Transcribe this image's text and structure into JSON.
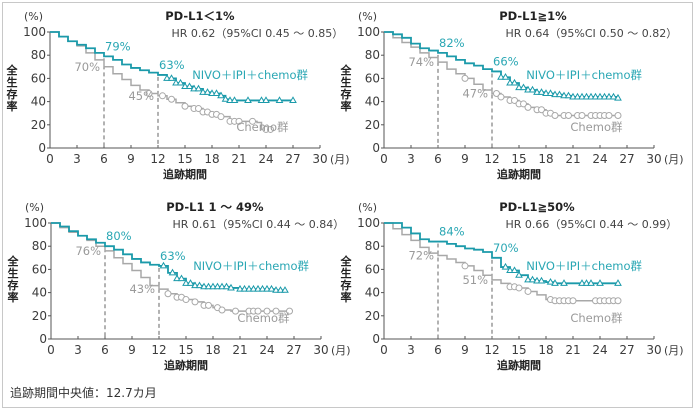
{
  "footnote": "追跡期間中央値：12.7カ月",
  "colors": {
    "nivo": "#1b9aaa",
    "nivo_label": "#2aa7b4",
    "chemo": "#a8a8a8",
    "chemo_label": "#9a9a9a",
    "axis": "#555555"
  },
  "chart_data": [
    {
      "type": "line",
      "title": "PD-L1＜1%",
      "hr_text": "HR 0.62（95%CI 0.45 ～ 0.85）",
      "xlabel": "追跡期間",
      "ylabel": "全生存率",
      "y_unit": "(%)",
      "x_unit": "(月)",
      "xlim": [
        0,
        30
      ],
      "ylim": [
        0,
        100
      ],
      "xticks": [
        0,
        3,
        6,
        9,
        12,
        15,
        18,
        21,
        24,
        27,
        30
      ],
      "yticks": [
        0,
        20,
        40,
        60,
        80,
        100
      ],
      "reference_lines_x": [
        6,
        12
      ],
      "series": [
        {
          "name": "NIVO＋IPI＋chemo群",
          "marker": "triangle",
          "x": [
            0,
            1,
            2,
            3,
            4,
            5,
            6,
            7,
            8,
            9,
            10,
            11,
            12,
            13,
            14,
            15,
            16,
            17,
            18,
            19,
            19.5,
            20,
            21,
            22,
            23,
            24,
            25,
            26,
            27
          ],
          "y": [
            100,
            96,
            92,
            89,
            86,
            82,
            79,
            76,
            72,
            69,
            67,
            65,
            63,
            60,
            56,
            53,
            51,
            48,
            47,
            45,
            42,
            41,
            41,
            41,
            41,
            41,
            41,
            41,
            41
          ],
          "annotations": [
            {
              "x": 6,
              "label": "79%"
            },
            {
              "x": 12,
              "label": "63%"
            }
          ],
          "censor_x": [
            13,
            13.5,
            14,
            14.5,
            15,
            15.5,
            16,
            16.5,
            17,
            17.5,
            18,
            18.5,
            19,
            19.5,
            20,
            20.5,
            22,
            23.5,
            24,
            25.5,
            27
          ]
        },
        {
          "name": "Chemo群",
          "marker": "circle",
          "x": [
            0,
            1,
            2,
            3,
            4,
            5,
            6,
            7,
            8,
            9,
            10,
            11,
            12,
            13,
            14,
            15,
            16,
            17,
            18,
            19,
            20,
            21,
            22,
            23,
            23.5,
            24,
            24.5
          ],
          "y": [
            100,
            96,
            92,
            88,
            82,
            76,
            70,
            64,
            59,
            54,
            50,
            47,
            45,
            42,
            39,
            36,
            34,
            31,
            29,
            27,
            23,
            23,
            23,
            22,
            16,
            16,
            16
          ],
          "annotations": [
            {
              "x": 6,
              "label": "70%"
            },
            {
              "x": 12,
              "label": "45%"
            }
          ],
          "censor_x": [
            11,
            12.5,
            13.5,
            15,
            16,
            16.5,
            17,
            17.5,
            18,
            18.5,
            19,
            20,
            20.5,
            21,
            22.5,
            24,
            24.5
          ]
        }
      ]
    },
    {
      "type": "line",
      "title": "PD-L1≧1%",
      "hr_text": "HR 0.64（95%CI 0.50 ～ 0.82）",
      "xlabel": "追跡期間",
      "ylabel": "全生存率",
      "y_unit": "(%)",
      "x_unit": "(月)",
      "xlim": [
        0,
        30
      ],
      "ylim": [
        0,
        100
      ],
      "xticks": [
        0,
        3,
        6,
        9,
        12,
        15,
        18,
        21,
        24,
        27,
        30
      ],
      "yticks": [
        0,
        20,
        40,
        60,
        80,
        100
      ],
      "reference_lines_x": [
        6,
        12
      ],
      "series": [
        {
          "name": "NIVO＋IPI＋chemo群",
          "marker": "triangle",
          "x": [
            0,
            1,
            2,
            3,
            4,
            5,
            6,
            7,
            8,
            9,
            10,
            11,
            12,
            13,
            14,
            15,
            16,
            17,
            18,
            19,
            20,
            21,
            22,
            23,
            24,
            25,
            26
          ],
          "y": [
            100,
            98,
            95,
            90,
            86,
            84,
            82,
            79,
            76,
            73,
            71,
            68,
            66,
            61,
            56,
            52,
            50,
            48,
            47,
            46,
            45,
            44,
            44,
            44,
            44,
            44,
            43
          ],
          "annotations": [
            {
              "x": 6,
              "label": "82%"
            },
            {
              "x": 12,
              "label": "66%"
            }
          ],
          "censor_x": [
            13,
            13.5,
            14,
            14.5,
            15,
            15.5,
            16,
            16.5,
            17,
            17.5,
            18,
            18.5,
            19,
            19.5,
            20,
            20.5,
            21,
            21.5,
            22,
            22.5,
            23,
            23.5,
            24,
            24.5,
            25,
            25.5,
            26
          ]
        },
        {
          "name": "Chemo群",
          "marker": "circle",
          "x": [
            0,
            1,
            2,
            3,
            4,
            5,
            6,
            7,
            8,
            9,
            10,
            11,
            12,
            13,
            14,
            15,
            16,
            17,
            18,
            19,
            20,
            21,
            22,
            23,
            24,
            25,
            26
          ],
          "y": [
            100,
            95,
            91,
            87,
            82,
            78,
            74,
            68,
            64,
            60,
            55,
            50,
            47,
            44,
            41,
            38,
            35,
            33,
            30,
            28,
            28,
            28,
            28,
            28,
            28,
            28,
            28
          ],
          "annotations": [
            {
              "x": 6,
              "label": "74%"
            },
            {
              "x": 12,
              "label": "47%"
            }
          ],
          "censor_x": [
            9,
            12.5,
            13,
            14,
            14.5,
            15,
            15.5,
            16,
            17,
            17.5,
            18,
            18.5,
            19,
            20,
            20.5,
            21.5,
            22,
            23,
            23.5,
            24,
            24.5,
            25,
            26
          ]
        }
      ]
    },
    {
      "type": "line",
      "title": "PD-L1 1 ～ 49%",
      "hr_text": "HR 0.61（95%CI 0.44 ～ 0.84）",
      "xlabel": "追跡期間",
      "ylabel": "全生存率",
      "y_unit": "(%)",
      "x_unit": "(月)",
      "xlim": [
        0,
        30
      ],
      "ylim": [
        0,
        100
      ],
      "xticks": [
        0,
        3,
        6,
        9,
        12,
        15,
        18,
        21,
        24,
        27,
        30
      ],
      "yticks": [
        0,
        20,
        40,
        60,
        80,
        100
      ],
      "reference_lines_x": [
        6,
        12
      ],
      "series": [
        {
          "name": "NIVO＋IPI＋chemo群",
          "marker": "triangle",
          "x": [
            0,
            1,
            2,
            3,
            4,
            5,
            6,
            7,
            8,
            9,
            10,
            11,
            12,
            13,
            14,
            15,
            16,
            17,
            18,
            19,
            20,
            21,
            22,
            23,
            24,
            25,
            26
          ],
          "y": [
            100,
            97,
            93,
            89,
            86,
            83,
            80,
            77,
            73,
            69,
            66,
            64,
            63,
            57,
            52,
            48,
            46,
            45,
            45,
            45,
            44,
            43,
            43,
            43,
            43,
            42,
            42
          ],
          "annotations": [
            {
              "x": 6,
              "label": "80%"
            },
            {
              "x": 12,
              "label": "63%"
            }
          ],
          "censor_x": [
            12.5,
            13.5,
            14,
            14.5,
            15,
            15.5,
            16,
            16.5,
            17,
            17.5,
            18,
            18.5,
            19,
            19.5,
            20,
            21,
            21.5,
            22,
            22.5,
            23,
            23.5,
            24,
            24.5,
            25,
            25.5,
            26
          ]
        },
        {
          "name": "Chemo群",
          "marker": "circle",
          "x": [
            0,
            1,
            2,
            3,
            4,
            5,
            6,
            7,
            8,
            9,
            10,
            11,
            12,
            13,
            14,
            15,
            16,
            17,
            18,
            19,
            20,
            21,
            22,
            23,
            24,
            25,
            26,
            26.5
          ],
          "y": [
            100,
            96,
            92,
            89,
            85,
            80,
            76,
            70,
            65,
            59,
            53,
            46,
            43,
            39,
            36,
            34,
            32,
            29,
            27,
            25,
            24,
            24,
            24,
            24,
            24,
            24,
            24,
            24
          ],
          "annotations": [
            {
              "x": 6,
              "label": "76%"
            },
            {
              "x": 12,
              "label": "43%"
            }
          ],
          "censor_x": [
            13,
            14,
            14.5,
            15,
            16,
            17,
            17.5,
            18.5,
            19,
            20.5,
            22,
            22.5,
            23,
            24,
            25,
            26.5
          ]
        }
      ]
    },
    {
      "type": "line",
      "title": "PD-L1≧50%",
      "hr_text": "HR 0.66（95%CI 0.44 ～ 0.99）",
      "xlabel": "追跡期間",
      "ylabel": "全生存率",
      "y_unit": "(%)",
      "x_unit": "(月)",
      "xlim": [
        0,
        30
      ],
      "ylim": [
        0,
        100
      ],
      "xticks": [
        0,
        3,
        6,
        9,
        12,
        15,
        18,
        21,
        24,
        27,
        30
      ],
      "yticks": [
        0,
        20,
        40,
        60,
        80,
        100
      ],
      "reference_lines_x": [
        6,
        12
      ],
      "series": [
        {
          "name": "NIVO＋IPI＋chemo群",
          "marker": "triangle",
          "x": [
            0,
            1,
            2,
            3,
            4,
            5,
            6,
            7,
            8,
            9,
            10,
            11,
            12,
            13,
            14,
            15,
            16,
            17,
            18,
            19,
            20,
            21,
            22,
            23,
            24,
            25,
            26
          ],
          "y": [
            100,
            100,
            96,
            91,
            86,
            84,
            84,
            82,
            80,
            78,
            77,
            75,
            70,
            62,
            59,
            55,
            51,
            50,
            49,
            48,
            48,
            48,
            48,
            48,
            48,
            48,
            48
          ],
          "annotations": [
            {
              "x": 6,
              "label": "84%"
            },
            {
              "x": 12,
              "label": "70%"
            }
          ],
          "censor_x": [
            13.5,
            14,
            14.5,
            15,
            16,
            16.5,
            17,
            17.5,
            18.5,
            19,
            20,
            22,
            22.5,
            23,
            24,
            26
          ]
        },
        {
          "name": "Chemo群",
          "marker": "circle",
          "x": [
            0,
            1,
            2,
            3,
            4,
            5,
            6,
            7,
            8,
            9,
            10,
            11,
            12,
            13,
            14,
            15,
            16,
            17,
            18,
            19,
            20,
            21,
            22,
            23,
            24,
            25,
            26
          ],
          "y": [
            100,
            95,
            90,
            85,
            79,
            74,
            72,
            69,
            66,
            63,
            59,
            55,
            51,
            48,
            45,
            44,
            41,
            38,
            34,
            33,
            33,
            33,
            33,
            33,
            33,
            33,
            33
          ],
          "annotations": [
            {
              "x": 6,
              "label": "72%"
            },
            {
              "x": 12,
              "label": "51%"
            }
          ],
          "censor_x": [
            9,
            14,
            14.5,
            15,
            16,
            18.5,
            19,
            19.5,
            20,
            20.5,
            21,
            23.5,
            24,
            24.5,
            25,
            25.5,
            26
          ]
        }
      ]
    }
  ]
}
